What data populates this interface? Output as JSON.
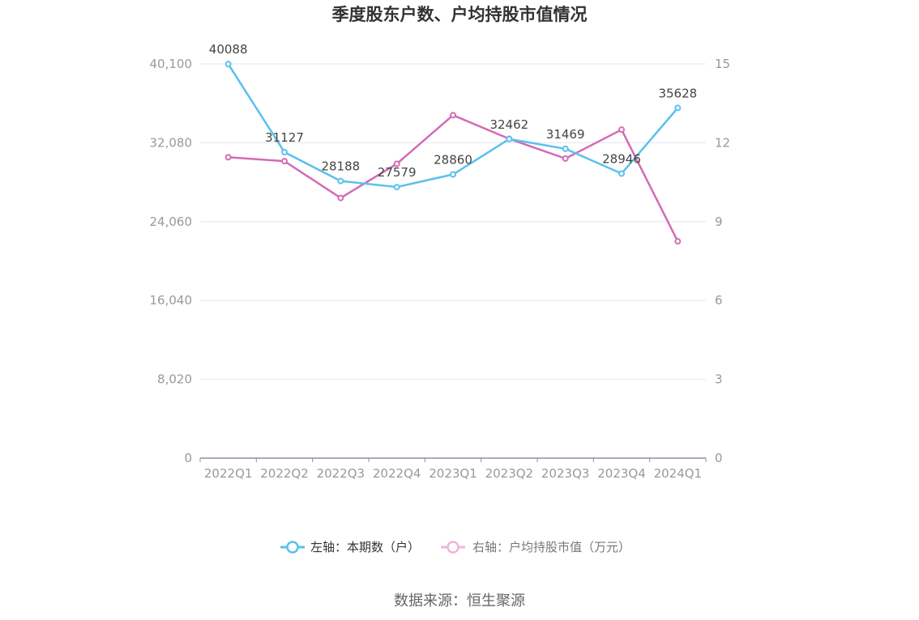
{
  "chart_data": {
    "type": "line",
    "title": "季度股东户数、户均持股市值情况",
    "categories": [
      "2022Q1",
      "2022Q2",
      "2022Q3",
      "2022Q4",
      "2023Q1",
      "2023Q2",
      "2023Q3",
      "2023Q4",
      "2024Q1"
    ],
    "series": [
      {
        "name": "左轴：本期数（户）",
        "axis": "left",
        "color": "#5bc0eb",
        "values": [
          40088,
          31127,
          28188,
          27579,
          28860,
          32462,
          31469,
          28946,
          35628
        ],
        "labels": [
          "40088",
          "31127",
          "28188",
          "27579",
          "28860",
          "32462",
          "31469",
          "28946",
          "35628"
        ]
      },
      {
        "name": "右轴：户均持股市值（万元）",
        "axis": "right",
        "color": "#d46bb5",
        "values": [
          11.45,
          11.3,
          9.9,
          11.2,
          13.05,
          12.15,
          11.4,
          12.5,
          8.25
        ]
      }
    ],
    "y_left": {
      "min": 0,
      "max": 40100,
      "ticks": [
        "0",
        "8,020",
        "16,040",
        "24,060",
        "32,080",
        "40,100"
      ]
    },
    "y_right": {
      "min": 0,
      "max": 15,
      "ticks": [
        "0",
        "3",
        "6",
        "9",
        "12",
        "15"
      ]
    },
    "grid": true,
    "legend_position": "bottom"
  },
  "source_text": "数据来源：恒生聚源"
}
